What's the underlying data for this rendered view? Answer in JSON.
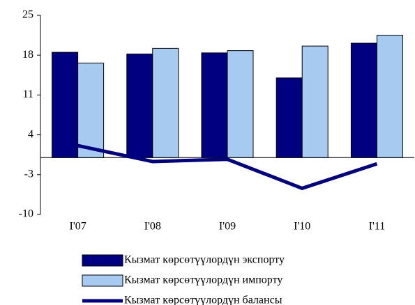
{
  "chart_data": {
    "type": "bar",
    "categories": [
      "I'07",
      "I'08",
      "I'09",
      "I'10",
      "I'11"
    ],
    "series": [
      {
        "name": "Кызмат көрсөтүүлордүн экспорту",
        "color": "#000080",
        "type": "bar",
        "values": [
          18.5,
          18.2,
          18.4,
          14.0,
          20.1
        ]
      },
      {
        "name": "Кызмат көрсөтүүлордүн импорту",
        "color": "#a6caf0",
        "type": "bar",
        "values": [
          16.6,
          19.2,
          18.8,
          19.6,
          21.5
        ]
      },
      {
        "name": "Кызмат көрсөтүүлордүн балансы",
        "color": "#000080",
        "type": "line",
        "values": [
          2.1,
          -0.7,
          -0.3,
          -5.4,
          -1.1
        ]
      }
    ],
    "ylim": [
      -10,
      25
    ],
    "yticks": [
      -10,
      -3,
      4,
      11,
      18,
      25
    ],
    "grid": false
  }
}
